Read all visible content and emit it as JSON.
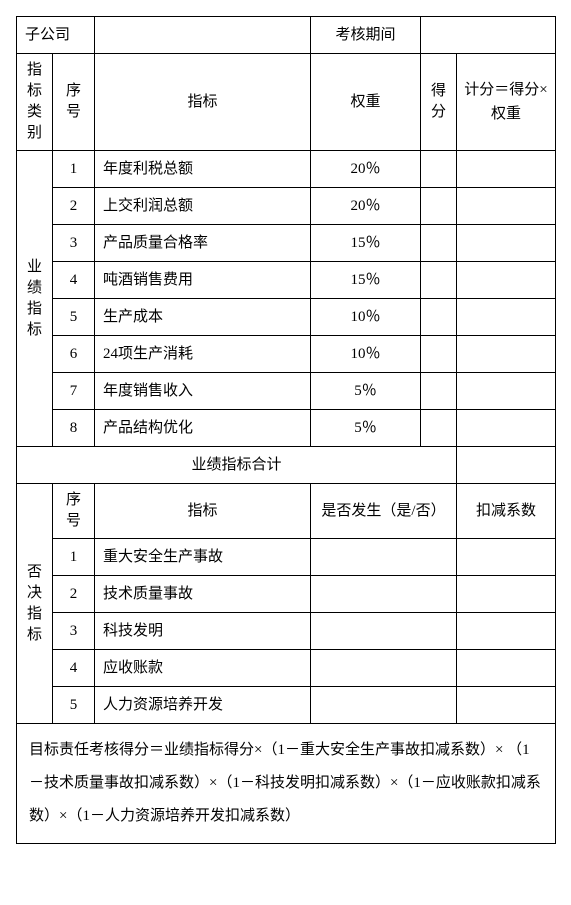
{
  "header": {
    "subsidiary_label": "子公司",
    "subsidiary_value": "",
    "period_label": "考核期间",
    "period_value": ""
  },
  "cols": {
    "category": "指标类别",
    "index": "序号",
    "indicator": "指标",
    "weight": "权重",
    "score": "得分",
    "calc": "计分＝得分×权重",
    "happened": "是否发生（是/否）",
    "deduct": "扣减系数"
  },
  "categories": {
    "perf": "业绩指标",
    "veto": "否决指标"
  },
  "perf_rows": [
    {
      "idx": "1",
      "name": "年度利税总额",
      "weight": "20％",
      "score": "",
      "calc": ""
    },
    {
      "idx": "2",
      "name": "上交利润总额",
      "weight": "20％",
      "score": "",
      "calc": ""
    },
    {
      "idx": "3",
      "name": "产品质量合格率",
      "weight": "15％",
      "score": "",
      "calc": ""
    },
    {
      "idx": "4",
      "name": "吨酒销售费用",
      "weight": "15％",
      "score": "",
      "calc": ""
    },
    {
      "idx": "5",
      "name": "生产成本",
      "weight": "10％",
      "score": "",
      "calc": ""
    },
    {
      "idx": "6",
      "name": "24项生产消耗",
      "weight": "10％",
      "score": "",
      "calc": ""
    },
    {
      "idx": "7",
      "name": "年度销售收入",
      "weight": "5％",
      "score": "",
      "calc": ""
    },
    {
      "idx": "8",
      "name": "产品结构优化",
      "weight": "5％",
      "score": "",
      "calc": ""
    }
  ],
  "perf_total_label": "业绩指标合计",
  "perf_total_value": "",
  "veto_rows": [
    {
      "idx": "1",
      "name": "重大安全生产事故",
      "happened": "",
      "deduct": ""
    },
    {
      "idx": "2",
      "name": "技术质量事故",
      "happened": "",
      "deduct": ""
    },
    {
      "idx": "3",
      "name": "科技发明",
      "happened": "",
      "deduct": ""
    },
    {
      "idx": "4",
      "name": "应收账款",
      "happened": "",
      "deduct": ""
    },
    {
      "idx": "5",
      "name": "人力资源培养开发",
      "happened": "",
      "deduct": ""
    }
  ],
  "formula": "目标责任考核得分＝业绩指标得分×（1－重大安全生产事故扣减系数）×\n（1－技术质量事故扣减系数）×（1－科技发明扣减系数）×（1－应收账款扣减系数）×（1－人力资源培养开发扣减系数）"
}
